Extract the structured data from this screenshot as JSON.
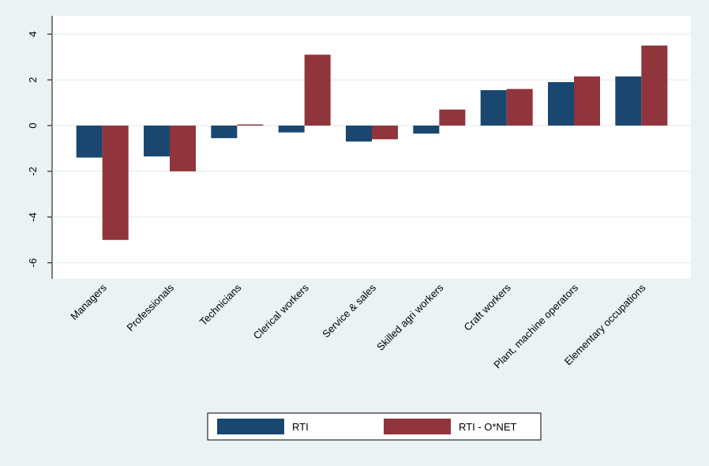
{
  "chart_data": {
    "type": "bar",
    "categories": [
      "Managers",
      "Professionals",
      "Technicians",
      "Clerical workers",
      "Service & sales",
      "Skilled agri workers",
      "Craft workers",
      "Plant, machine operators",
      "Elementary occupations"
    ],
    "series": [
      {
        "name": "RTI",
        "color": "#1a476f",
        "values": [
          -1.4,
          -1.35,
          -0.55,
          -0.3,
          -0.7,
          -0.35,
          1.55,
          1.9,
          2.15
        ]
      },
      {
        "name": "RTI - O*NET",
        "color": "#90353b",
        "values": [
          -5.0,
          -2.0,
          0.05,
          3.1,
          -0.6,
          0.7,
          1.6,
          2.15,
          3.5
        ]
      }
    ],
    "ylim": [
      -6.7,
      4.8
    ],
    "yticks": [
      -6,
      -4,
      -2,
      0,
      2,
      4
    ],
    "grid": true,
    "legend": "bottom"
  }
}
